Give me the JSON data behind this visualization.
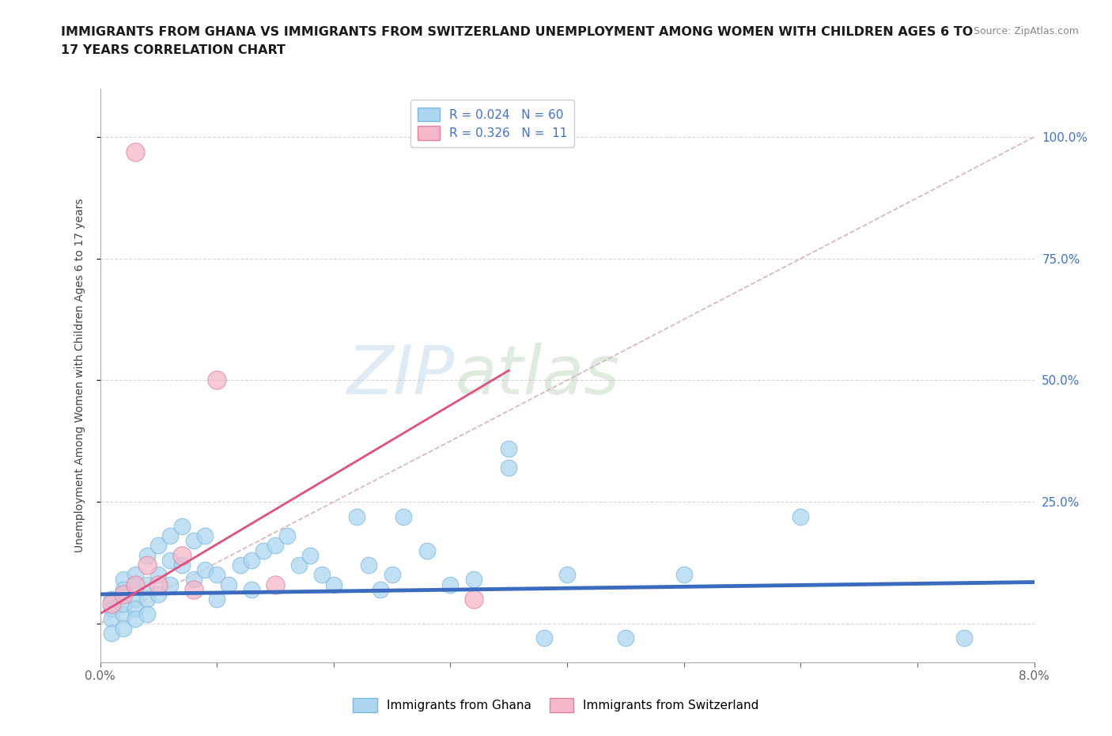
{
  "title_line1": "IMMIGRANTS FROM GHANA VS IMMIGRANTS FROM SWITZERLAND UNEMPLOYMENT AMONG WOMEN WITH CHILDREN AGES 6 TO",
  "title_line2": "17 YEARS CORRELATION CHART",
  "source": "Source: ZipAtlas.com",
  "ylabel": "Unemployment Among Women with Children Ages 6 to 17 years",
  "xlim": [
    0.0,
    0.08
  ],
  "ylim": [
    -0.08,
    1.1
  ],
  "xticks": [
    0.0,
    0.01,
    0.02,
    0.03,
    0.04,
    0.05,
    0.06,
    0.07,
    0.08
  ],
  "xtick_labels": [
    "0.0%",
    "",
    "",
    "",
    "",
    "",
    "",
    "",
    "8.0%"
  ],
  "ytick_positions": [
    0.0,
    0.25,
    0.5,
    0.75,
    1.0
  ],
  "ytick_right_labels": [
    "",
    "25.0%",
    "50.0%",
    "75.0%",
    "100.0%"
  ],
  "ghana_color": "#aed6f0",
  "ghana_edge": "#7ab8e0",
  "switzerland_color": "#f5b8c8",
  "switzerland_edge": "#e080a0",
  "ghana_R": 0.024,
  "ghana_N": 60,
  "switzerland_R": 0.326,
  "switzerland_N": 11,
  "ghana_line_color": "#3a6bbf",
  "switzerland_line_color": "#e05080",
  "diagonal_color": "#d0a0a8",
  "watermark_zip": "ZIP",
  "watermark_atlas": "atlas",
  "legend_ghana_label": "Immigrants from Ghana",
  "legend_switzerland_label": "Immigrants from Switzerland",
  "ghana_x": [
    0.001,
    0.001,
    0.001,
    0.001,
    0.002,
    0.002,
    0.002,
    0.002,
    0.002,
    0.002,
    0.003,
    0.003,
    0.003,
    0.003,
    0.003,
    0.004,
    0.004,
    0.004,
    0.004,
    0.005,
    0.005,
    0.005,
    0.006,
    0.006,
    0.006,
    0.007,
    0.007,
    0.008,
    0.008,
    0.009,
    0.009,
    0.01,
    0.01,
    0.011,
    0.012,
    0.013,
    0.013,
    0.014,
    0.015,
    0.016,
    0.017,
    0.018,
    0.019,
    0.02,
    0.022,
    0.023,
    0.024,
    0.025,
    0.026,
    0.028,
    0.03,
    0.032,
    0.035,
    0.035,
    0.038,
    0.04,
    0.045,
    0.05,
    0.06,
    0.074
  ],
  "ghana_y": [
    0.03,
    0.01,
    0.05,
    -0.02,
    0.06,
    0.02,
    0.09,
    0.04,
    0.07,
    -0.01,
    0.1,
    0.05,
    0.03,
    0.08,
    0.01,
    0.14,
    0.08,
    0.05,
    0.02,
    0.16,
    0.1,
    0.06,
    0.18,
    0.13,
    0.08,
    0.2,
    0.12,
    0.17,
    0.09,
    0.18,
    0.11,
    0.1,
    0.05,
    0.08,
    0.12,
    0.13,
    0.07,
    0.15,
    0.16,
    0.18,
    0.12,
    0.14,
    0.1,
    0.08,
    0.22,
    0.12,
    0.07,
    0.1,
    0.22,
    0.15,
    0.08,
    0.09,
    0.36,
    0.32,
    -0.03,
    0.1,
    -0.03,
    0.1,
    0.22,
    -0.03
  ],
  "switzerland_x": [
    0.001,
    0.002,
    0.003,
    0.003,
    0.004,
    0.005,
    0.007,
    0.008,
    0.01,
    0.015,
    0.032
  ],
  "switzerland_y": [
    0.04,
    0.06,
    0.08,
    0.97,
    0.12,
    0.08,
    0.14,
    0.07,
    0.5,
    0.08,
    0.05
  ],
  "sw_trend_x0": 0.0,
  "sw_trend_y0": 0.02,
  "sw_trend_x1": 0.035,
  "sw_trend_y1": 0.52,
  "gh_trend_x0": 0.0,
  "gh_trend_y0": 0.06,
  "gh_trend_x1": 0.08,
  "gh_trend_y1": 0.085
}
